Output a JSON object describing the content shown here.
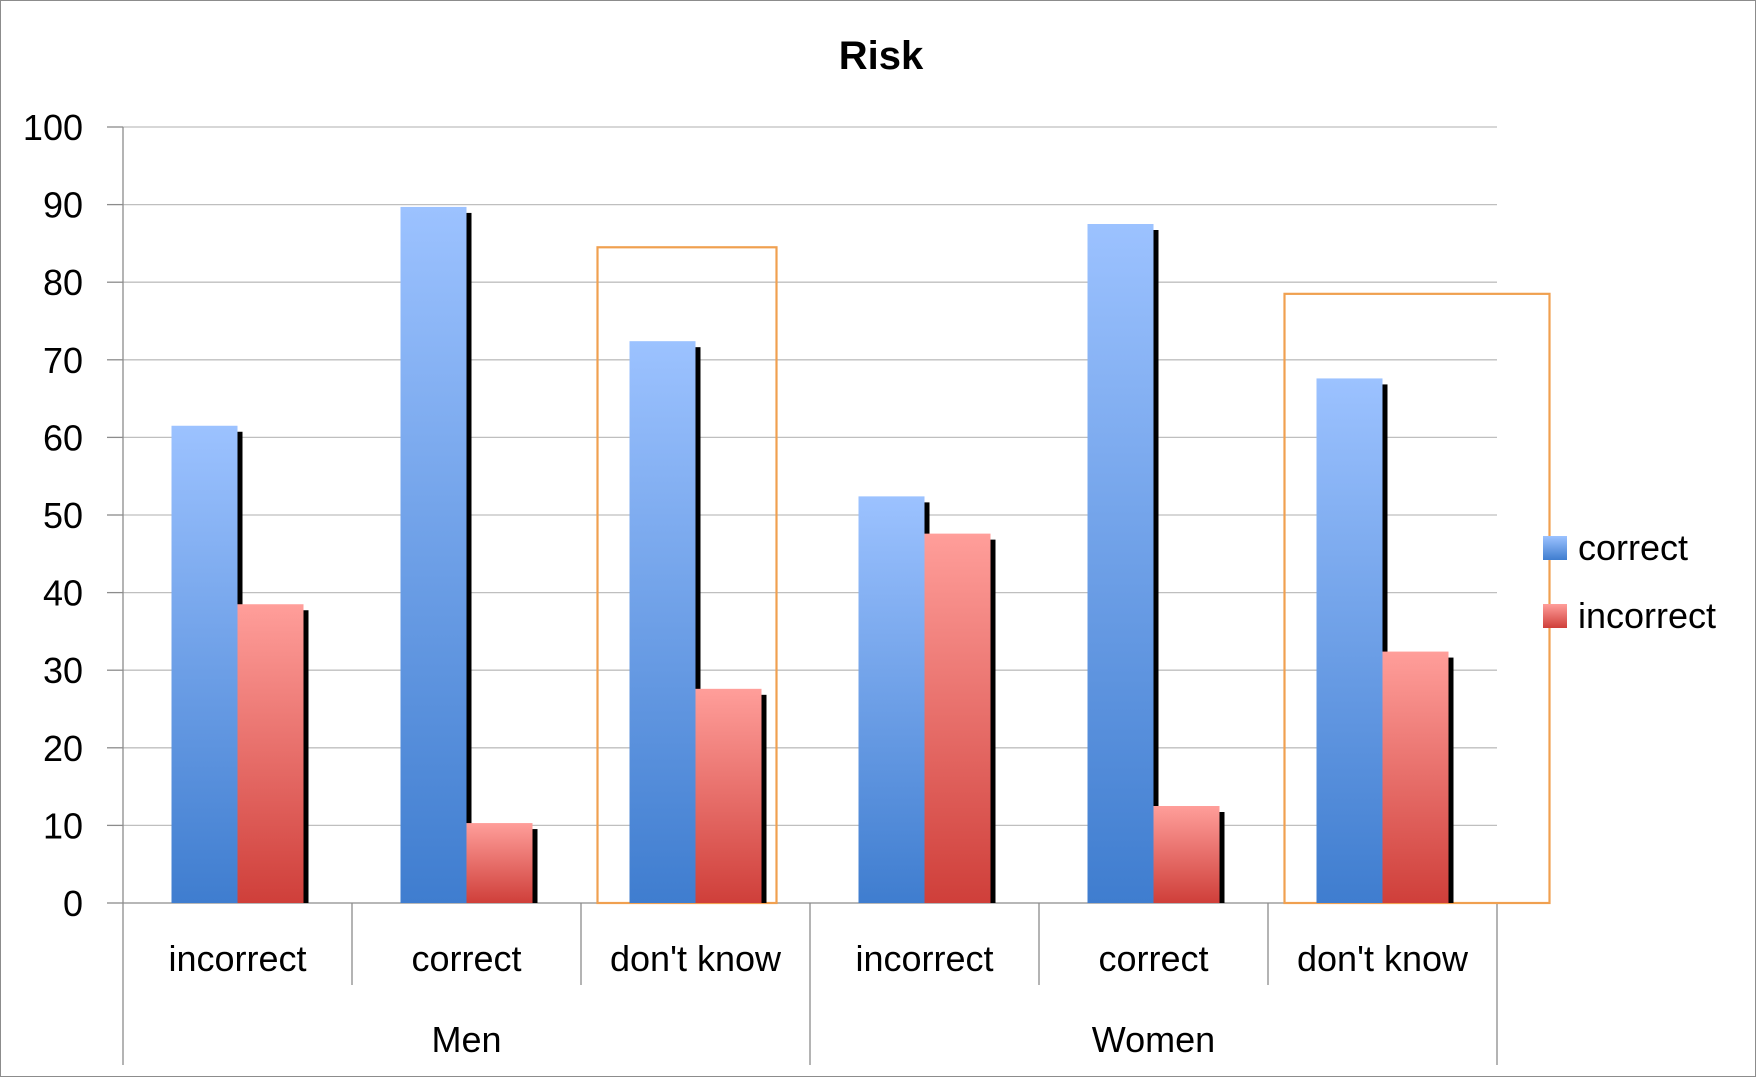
{
  "chart_data": {
    "type": "bar",
    "title": "Risk",
    "xlabel": "",
    "ylabel": "",
    "ylim": [
      0,
      100
    ],
    "yticks": [
      0,
      10,
      20,
      30,
      40,
      50,
      60,
      70,
      80,
      90,
      100
    ],
    "grid": true,
    "legend_position": "right",
    "groups": [
      {
        "label": "Men",
        "categories": [
          "incorrect",
          "correct",
          "don't know"
        ]
      },
      {
        "label": "Women",
        "categories": [
          "incorrect",
          "correct",
          "don't know"
        ]
      }
    ],
    "categories": [
      "incorrect",
      "correct",
      "don't know",
      "incorrect",
      "correct",
      "don't know"
    ],
    "series": [
      {
        "name": "correct",
        "color": "#4a86d8",
        "values": [
          61.5,
          89.7,
          72.4,
          52.4,
          87.5,
          67.6
        ]
      },
      {
        "name": "incorrect",
        "color": "#d9534f",
        "values": [
          38.5,
          10.3,
          27.6,
          47.6,
          12.5,
          32.4
        ]
      }
    ],
    "highlight_categories": [
      2,
      5
    ],
    "highlight_color": "#f0a050"
  }
}
